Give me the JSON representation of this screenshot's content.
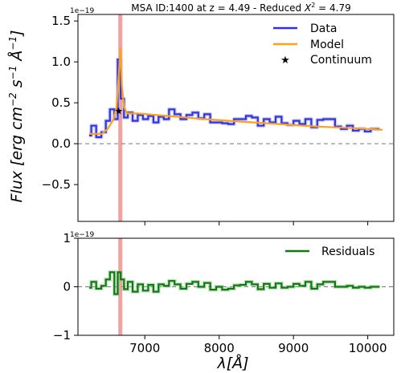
{
  "chart_data": {
    "title_prefix": "MSA ID:1400 at z = 4.49 - Reduced ",
    "title_chi_symbol": "X",
    "title_chi_exp": "2",
    "title_chi_value": " = 4.79",
    "ylabel_parts": {
      "flux": "Flux [erg cm",
      "exp1": "−2",
      "s": " s",
      "exp2": "−1",
      "angstrom": " Å",
      "exp3": "−1",
      "close": "]"
    },
    "xlabel": "λ[Å]",
    "offset_text_top": "1e−19",
    "offset_text_bottom": "1e−19",
    "emission_line_x": 6670,
    "xlim": [
      6100,
      10350
    ],
    "top_panel": {
      "type": "line",
      "ylim": [
        -0.95,
        1.58
      ],
      "yticks": [
        -0.5,
        0.0,
        0.5,
        1.0,
        1.5
      ],
      "ytick_labels": [
        "−0.5",
        "0.0",
        "0.5",
        "1.0",
        "1.5"
      ],
      "hline_y": 0,
      "legend_location": "top-right",
      "series": [
        {
          "name": "Data",
          "color": "#3333dd",
          "drawstyle": "steps-mid",
          "x": [
            6250,
            6310,
            6380,
            6450,
            6500,
            6560,
            6620,
            6650,
            6700,
            6740,
            6800,
            6870,
            6940,
            7010,
            7080,
            7150,
            7220,
            7290,
            7360,
            7440,
            7520,
            7600,
            7680,
            7760,
            7840,
            7920,
            8000,
            8080,
            8160,
            8240,
            8320,
            8400,
            8480,
            8560,
            8640,
            8720,
            8800,
            8880,
            8960,
            9040,
            9120,
            9200,
            9280,
            9360,
            9440,
            9520,
            9600,
            9680,
            9760,
            9840,
            9920,
            10000,
            10080,
            10160
          ],
          "y": [
            0.1,
            0.22,
            0.08,
            0.14,
            0.28,
            0.42,
            0.3,
            1.03,
            0.55,
            0.32,
            0.38,
            0.28,
            0.35,
            0.3,
            0.34,
            0.26,
            0.33,
            0.3,
            0.42,
            0.36,
            0.3,
            0.35,
            0.38,
            0.31,
            0.36,
            0.26,
            0.26,
            0.25,
            0.24,
            0.3,
            0.3,
            0.34,
            0.32,
            0.22,
            0.3,
            0.26,
            0.33,
            0.25,
            0.23,
            0.28,
            0.24,
            0.3,
            0.2,
            0.29,
            0.3,
            0.3,
            0.21,
            0.18,
            0.22,
            0.16,
            0.18,
            0.15,
            0.18,
            0.18
          ]
        },
        {
          "name": "Model",
          "color": "#ffa01c",
          "drawstyle": "line",
          "x": [
            6250,
            6420,
            6500,
            6580,
            6620,
            6650,
            6670,
            6690,
            6720,
            6760,
            6900,
            7300,
            7800,
            8300,
            8800,
            9300,
            9800,
            10200
          ],
          "y": [
            0.12,
            0.12,
            0.18,
            0.3,
            0.45,
            0.85,
            1.17,
            0.72,
            0.45,
            0.37,
            0.37,
            0.34,
            0.3,
            0.27,
            0.24,
            0.21,
            0.19,
            0.17
          ]
        }
      ],
      "continuum_point": {
        "name": "Continuum",
        "x": 6650,
        "y": 0.4
      }
    },
    "bottom_panel": {
      "type": "line",
      "ylim": [
        -1,
        1
      ],
      "yticks": [
        -1,
        0,
        1
      ],
      "ytick_labels": [
        "−1",
        "0",
        "1"
      ],
      "hline_y": 0,
      "legend_location": "top-right",
      "series": [
        {
          "name": "Residuals",
          "color": "#0e7b0e",
          "drawstyle": "steps-mid",
          "x": [
            6250,
            6310,
            6380,
            6450,
            6500,
            6560,
            6620,
            6650,
            6700,
            6740,
            6800,
            6870,
            6940,
            7010,
            7080,
            7150,
            7220,
            7290,
            7360,
            7440,
            7520,
            7600,
            7680,
            7760,
            7840,
            7920,
            8000,
            8080,
            8160,
            8240,
            8320,
            8400,
            8480,
            8560,
            8640,
            8720,
            8800,
            8880,
            8960,
            9040,
            9120,
            9200,
            9280,
            9360,
            9440,
            9520,
            9600,
            9680,
            9760,
            9840,
            9920,
            10000,
            10080,
            10160
          ],
          "y": [
            -0.02,
            0.1,
            -0.04,
            0.02,
            0.15,
            0.3,
            -0.15,
            0.3,
            0.15,
            -0.05,
            0.1,
            -0.1,
            0.05,
            -0.08,
            0.04,
            -0.1,
            0.05,
            0.02,
            0.12,
            0.05,
            -0.04,
            0.06,
            0.1,
            0.0,
            0.08,
            -0.06,
            0.0,
            -0.06,
            -0.04,
            0.03,
            0.04,
            0.1,
            0.05,
            -0.05,
            0.06,
            -0.02,
            0.07,
            -0.02,
            0.0,
            0.06,
            0.02,
            0.1,
            -0.04,
            0.05,
            0.1,
            0.1,
            0.0,
            0.0,
            0.02,
            -0.02,
            0.0,
            -0.02,
            0.0,
            0.0
          ]
        }
      ]
    },
    "xticks": [
      7000,
      8000,
      9000,
      10000
    ],
    "xtick_labels": [
      "7000",
      "8000",
      "9000",
      "10000"
    ]
  }
}
